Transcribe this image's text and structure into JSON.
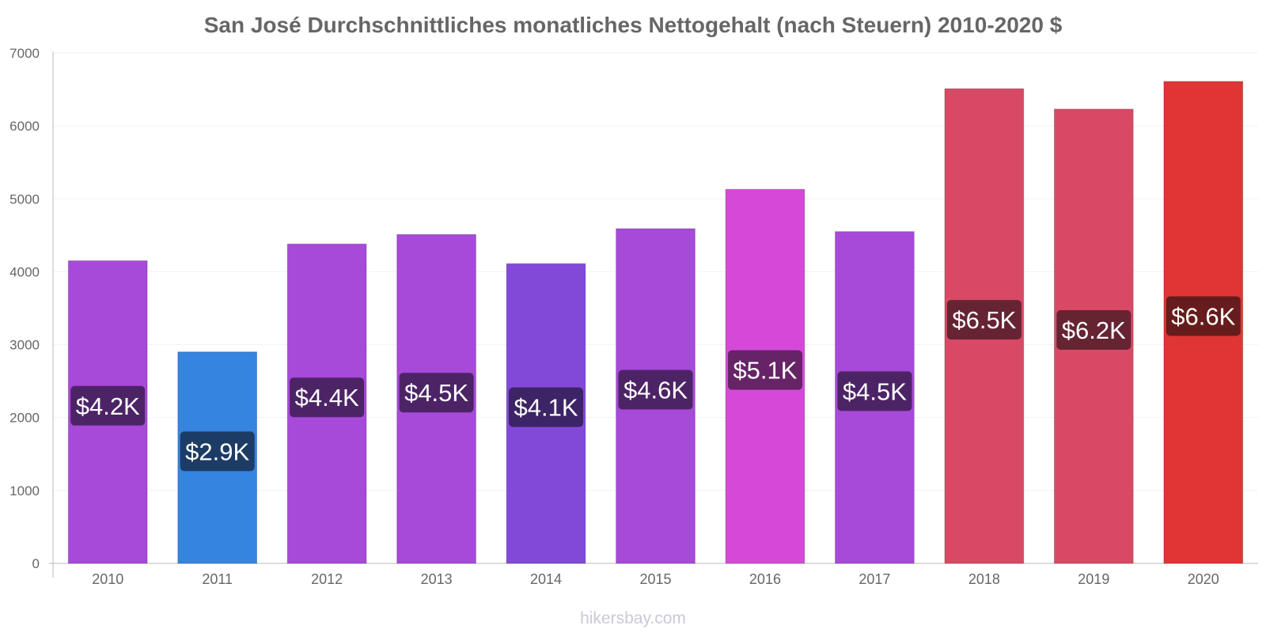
{
  "chart_data": {
    "type": "bar",
    "title": "San José Durchschnittliches monatliches Nettogehalt (nach Steuern) 2010-2020 $",
    "xlabel": "",
    "ylabel": "",
    "categories": [
      "2010",
      "2011",
      "2012",
      "2013",
      "2014",
      "2015",
      "2016",
      "2017",
      "2018",
      "2019",
      "2020"
    ],
    "values": [
      4150,
      2900,
      4380,
      4510,
      4110,
      4590,
      5130,
      4550,
      6510,
      6230,
      6610
    ],
    "data_labels": [
      "$4.2K",
      "$2.9K",
      "$4.4K",
      "$4.5K",
      "$4.1K",
      "$4.6K",
      "$5.1K",
      "$4.5K",
      "$6.5K",
      "$6.2K",
      "$6.6K"
    ],
    "bar_colors": [
      "#a749d9",
      "#3584e0",
      "#a749d9",
      "#a749d9",
      "#8249d9",
      "#a749d9",
      "#d549d9",
      "#a749d9",
      "#d94965",
      "#d94965",
      "#e03535"
    ],
    "label_colors": [
      "#4c2466",
      "#1c3c66",
      "#4c2466",
      "#4c2466",
      "#3c2466",
      "#4c2466",
      "#662466",
      "#4c2466",
      "#662433",
      "#662433",
      "#661c1c"
    ],
    "ylim": [
      0,
      7000
    ],
    "yticks": [
      0,
      1000,
      2000,
      3000,
      4000,
      5000,
      6000,
      7000
    ],
    "grid": true,
    "legend": "none"
  },
  "watermark": "hikersbay.com"
}
